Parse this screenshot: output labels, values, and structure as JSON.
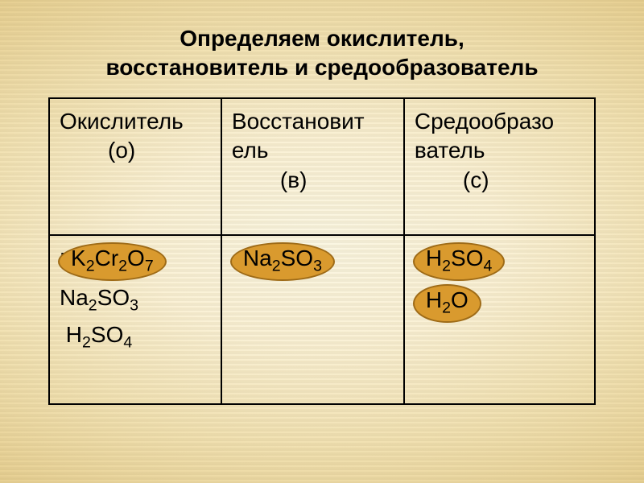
{
  "title": {
    "line1": "Определяем окислитель,",
    "line2": "восстановитель и средообразователь",
    "fontsize": 28,
    "color": "#000000"
  },
  "table": {
    "border_color": "#000000",
    "col_widths_pct": [
      33.3,
      33.3,
      33.4
    ],
    "header_fontsize": 28,
    "body_fontsize": 28,
    "columns": [
      {
        "line1": "Окислитель",
        "line2": "(о)"
      },
      {
        "line1": "Восстановит",
        "line1b": "ель",
        "line2": "(в)"
      },
      {
        "line1": "Средообразо",
        "line1b": "ватель",
        "line2": "(с)"
      }
    ],
    "plain_formulas": {
      "col0": [
        "K2Cr2O7",
        "Na2SO3",
        " H2SO4"
      ],
      "col1": [],
      "col2": []
    },
    "chips": {
      "col0": [
        {
          "formula": "K2Cr2O7",
          "bg": "#d99a2e",
          "border": "#9e6b17",
          "text": "#000000"
        }
      ],
      "col1": [
        {
          "formula": "Na2SO3",
          "bg": "#d99a2e",
          "border": "#9e6b17",
          "text": "#000000"
        }
      ],
      "col2": [
        {
          "formula": "H2SO4",
          "bg": "#d99a2e",
          "border": "#9e6b17",
          "text": "#000000"
        },
        {
          "formula": "H2O",
          "bg": "#d99a2e",
          "border": "#9e6b17",
          "text": "#000000"
        }
      ]
    }
  },
  "background": {
    "center_color": "#fffef0",
    "mid_color": "#f5e6b8",
    "edge_color": "#d4b870"
  }
}
